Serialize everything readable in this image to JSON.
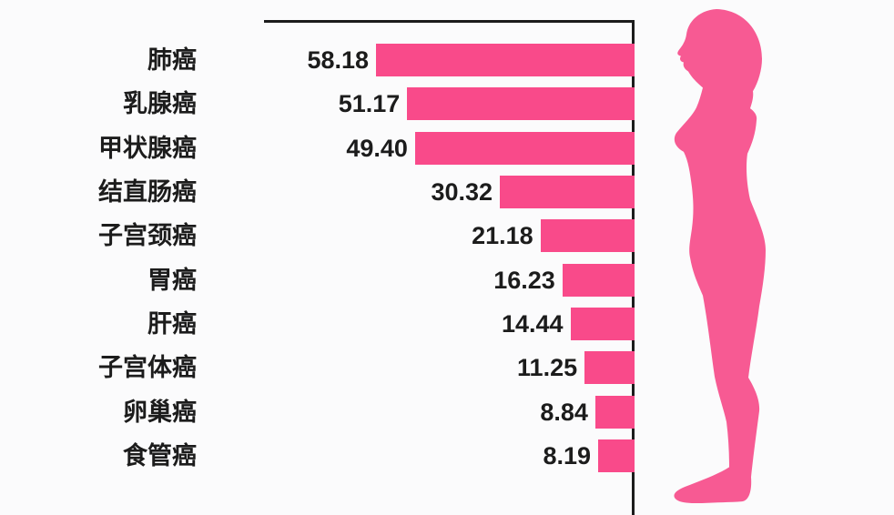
{
  "chart_data": {
    "type": "bar",
    "orientation": "horizontal-right-anchored",
    "title": "",
    "categories": [
      "肺癌",
      "乳腺癌",
      "甲状腺癌",
      "结直肠癌",
      "子宫颈癌",
      "胃癌",
      "肝癌",
      "子宫体癌",
      "卵巢癌",
      "食管癌"
    ],
    "values": [
      58.18,
      51.17,
      49.4,
      30.32,
      21.18,
      16.23,
      14.44,
      11.25,
      8.84,
      8.19
    ],
    "value_labels": [
      "58.18",
      "51.17",
      "49.40",
      "30.32",
      "21.18",
      "16.23",
      "14.44",
      "11.25",
      "8.84",
      "8.19"
    ],
    "xlim": [
      0,
      83.4
    ],
    "grid": false,
    "legend": false,
    "bar_color": "#F94A8A",
    "axis_color": "#1C1C1C",
    "label_color": "#1C1C1C"
  },
  "figure": {
    "name": "female-profile-silhouette",
    "color": "#F75A93"
  },
  "background": "#FBFBFC"
}
